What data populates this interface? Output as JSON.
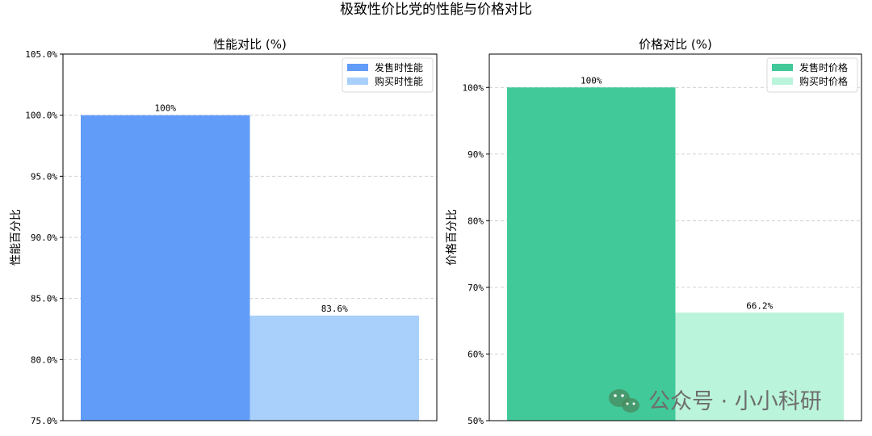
{
  "suptitle": "极致性价比党的性能与价格对比",
  "watermark": {
    "text": "公众号 · 小小科研",
    "icon": "wechat-icon"
  },
  "chart_data": [
    {
      "type": "bar",
      "title": "性能对比 (%)",
      "ylabel": "性能百分比",
      "ylim": [
        75,
        105
      ],
      "yticks": [
        75,
        80,
        85,
        90,
        95,
        100,
        105
      ],
      "ytick_labels": [
        "75.0%",
        "80.0%",
        "85.0%",
        "90.0%",
        "95.0%",
        "100.0%",
        "105.0%"
      ],
      "grid": "y-dashed",
      "legend": "top-right",
      "series": [
        {
          "name": "发售时性能",
          "value": 100,
          "label": "100%",
          "color": "#619CF8"
        },
        {
          "name": "购买时性能",
          "value": 83.6,
          "label": "83.6%",
          "color": "#A8D0FB"
        }
      ]
    },
    {
      "type": "bar",
      "title": "价格对比 (%)",
      "ylabel": "价格百分比",
      "ylim": [
        50,
        105
      ],
      "yticks": [
        50,
        60,
        70,
        80,
        90,
        100
      ],
      "ytick_labels": [
        "50%",
        "60%",
        "70%",
        "80%",
        "90%",
        "100%"
      ],
      "grid": "y-dashed",
      "legend": "top-right",
      "series": [
        {
          "name": "发售时价格",
          "value": 100,
          "label": "100%",
          "color": "#41C99A"
        },
        {
          "name": "购买时价格",
          "value": 66.2,
          "label": "66.2%",
          "color": "#BAF4DA"
        }
      ]
    }
  ]
}
